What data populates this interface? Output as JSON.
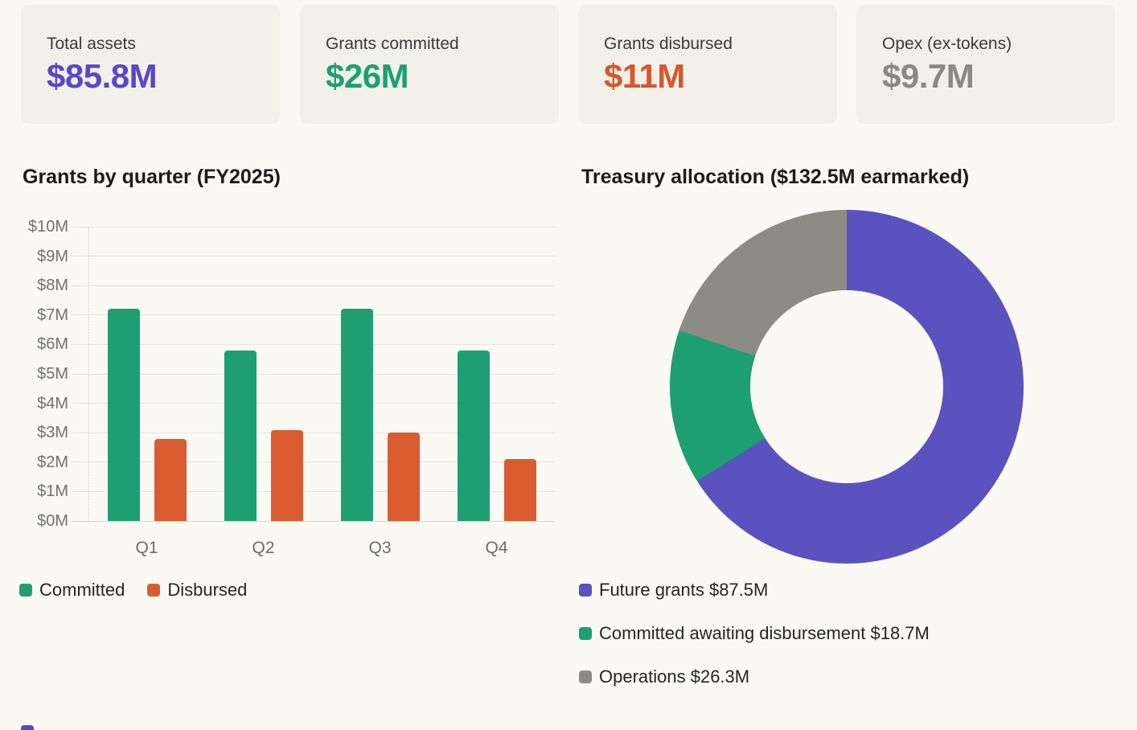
{
  "page": {
    "background": "#FAF9F3",
    "card_background": "#F1F0E9"
  },
  "stats": [
    {
      "label": "Total assets",
      "value": "$85.8M",
      "color": "#5847C8"
    },
    {
      "label": "Grants committed",
      "value": "$26M",
      "color": "#1BA06F"
    },
    {
      "label": "Grants disbursed",
      "value": "$11M",
      "color": "#D7562B"
    },
    {
      "label": "Opex (ex-tokens)",
      "value": "$9.7M",
      "color": "#8A8983"
    }
  ],
  "chart_data": [
    {
      "type": "bar",
      "title": "Grants by quarter (FY2025)",
      "categories": [
        "Q1",
        "Q2",
        "Q3",
        "Q4"
      ],
      "series": [
        {
          "name": "Committed",
          "color": "#1D9E73",
          "values": [
            7.2,
            5.8,
            7.2,
            5.8
          ]
        },
        {
          "name": "Disbursed",
          "color": "#DA5B30",
          "values": [
            2.8,
            3.1,
            3.0,
            2.1
          ]
        }
      ],
      "xlabel": "",
      "ylabel": "",
      "ylim": [
        0,
        10
      ],
      "yticks": [
        {
          "label": "$10M",
          "value": 10
        },
        {
          "label": "$9M",
          "value": 9
        },
        {
          "label": "$8M",
          "value": 8
        },
        {
          "label": "$7M",
          "value": 7
        },
        {
          "label": "$6M",
          "value": 6
        },
        {
          "label": "$5M",
          "value": 5
        },
        {
          "label": "$4M",
          "value": 4
        },
        {
          "label": "$3M",
          "value": 3
        },
        {
          "label": "$2M",
          "value": 2
        },
        {
          "label": "$1M",
          "value": 1
        },
        {
          "label": "$0M",
          "value": 0
        }
      ],
      "grid": true,
      "legend_position": "bottom-left"
    },
    {
      "type": "donut",
      "title": "Treasury allocation ($132.5M earmarked)",
      "total": 132.5,
      "slices": [
        {
          "label": "Future grants $87.5M",
          "value": 87.5,
          "color": "#5A52BE"
        },
        {
          "label": "Committed awaiting disbursement $18.7M",
          "value": 18.7,
          "color": "#1D9E73"
        },
        {
          "label": "Operations $26.3M",
          "value": 26.3,
          "color": "#8C8B84"
        }
      ],
      "legend_position": "bottom-left"
    }
  ],
  "cutoff_swatch": {
    "color": "#5847C8"
  }
}
